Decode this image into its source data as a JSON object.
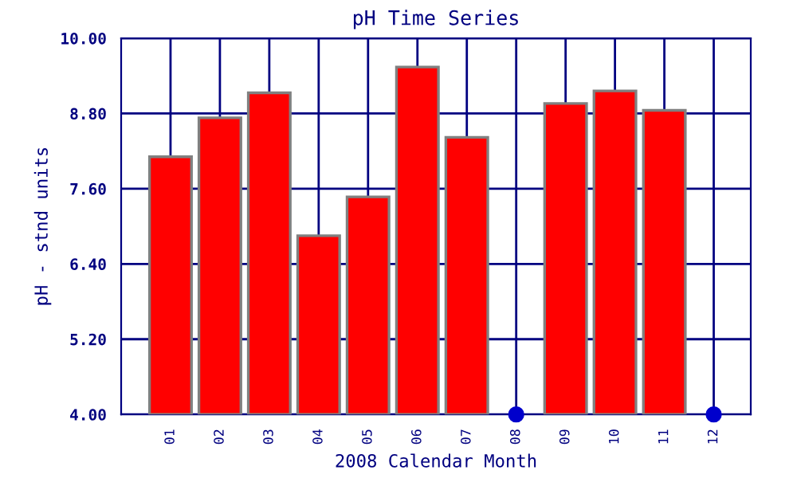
{
  "chart_data": {
    "type": "bar",
    "title": "pH Time Series",
    "xlabel": "2008 Calendar Month",
    "ylabel": "pH - stnd units",
    "categories": [
      "01",
      "02",
      "03",
      "04",
      "05",
      "06",
      "07",
      "08",
      "09",
      "10",
      "11",
      "12"
    ],
    "series": [
      {
        "color": "#ff0000",
        "values": [
          8.11,
          8.73,
          9.13,
          6.85,
          7.47,
          9.54,
          8.42,
          null,
          8.96,
          9.16,
          8.85,
          null
        ]
      },
      {
        "type": "scatter",
        "color": "#0000cc",
        "x": [
          "08",
          "12"
        ],
        "values": [
          4.0,
          4.0
        ]
      }
    ],
    "ylim": [
      4.0,
      10.0
    ],
    "yticks": [
      {
        "value": 4.0,
        "label": "4.00"
      },
      {
        "value": 5.2,
        "label": "5.20"
      },
      {
        "value": 6.4,
        "label": "6.40"
      },
      {
        "value": 7.6,
        "label": "7.60"
      },
      {
        "value": 8.8,
        "label": "8.80"
      },
      {
        "value": 10.0,
        "label": "10.00"
      }
    ],
    "grid": true,
    "marker": "circle"
  }
}
